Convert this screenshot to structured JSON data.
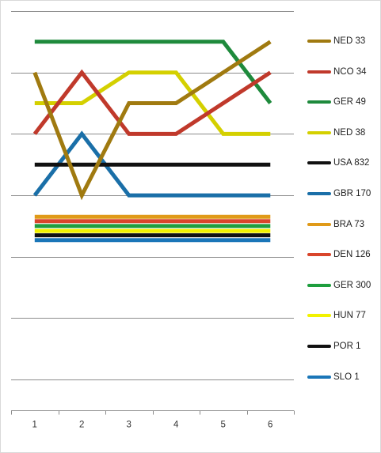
{
  "chart_data": {
    "type": "line",
    "title": "",
    "xlabel": "",
    "ylabel": "",
    "categories": [
      "1",
      "2",
      "3",
      "4",
      "5",
      "6"
    ],
    "grid": true,
    "legend_position": "right",
    "series": [
      {
        "name": "NED 33",
        "color": "#a07a10",
        "values": [
          5.0,
          7.0,
          5.5,
          5.5,
          5.0,
          4.5
        ]
      },
      {
        "name": "NCO 34",
        "color": "#c0392b",
        "values": [
          6.0,
          5.0,
          6.0,
          6.0,
          5.5,
          5.0
        ]
      },
      {
        "name": "GER 49",
        "color": "#1e8a3c",
        "values": [
          4.5,
          4.5,
          4.5,
          4.5,
          4.5,
          5.5
        ]
      },
      {
        "name": "NED 38",
        "color": "#d4d000",
        "values": [
          5.5,
          5.5,
          5.0,
          5.0,
          6.0,
          6.0
        ]
      },
      {
        "name": "USA 832",
        "color": "#111111",
        "values": [
          6.5,
          6.5,
          6.5,
          6.5,
          6.5,
          6.5
        ]
      },
      {
        "name": "GBR 170",
        "color": "#1a6fa8",
        "values": [
          7.0,
          6.0,
          7.0,
          7.0,
          7.0,
          7.0
        ]
      },
      {
        "name": "BRA 73",
        "color": "#e09a18",
        "values": [
          7.35,
          7.35,
          7.35,
          7.35,
          7.35,
          7.35
        ]
      },
      {
        "name": "DEN 126",
        "color": "#d9452b",
        "values": [
          7.42,
          7.42,
          7.42,
          7.42,
          7.42,
          7.42
        ]
      },
      {
        "name": "GER 300",
        "color": "#1e9e3e",
        "values": [
          7.5,
          7.5,
          7.5,
          7.5,
          7.5,
          7.5
        ]
      },
      {
        "name": "HUN 77",
        "color": "#f2f200",
        "values": [
          7.58,
          7.58,
          7.58,
          7.58,
          7.58,
          7.58
        ]
      },
      {
        "name": "POR 1",
        "color": "#111111",
        "values": [
          7.65,
          7.65,
          7.65,
          7.65,
          7.65,
          7.65
        ]
      },
      {
        "name": "SLO 1",
        "color": "#1a76b8",
        "values": [
          7.73,
          7.73,
          7.73,
          7.73,
          7.73,
          7.73
        ]
      }
    ],
    "ylim": [
      4.0,
      10.5
    ],
    "y_inverted": true
  }
}
